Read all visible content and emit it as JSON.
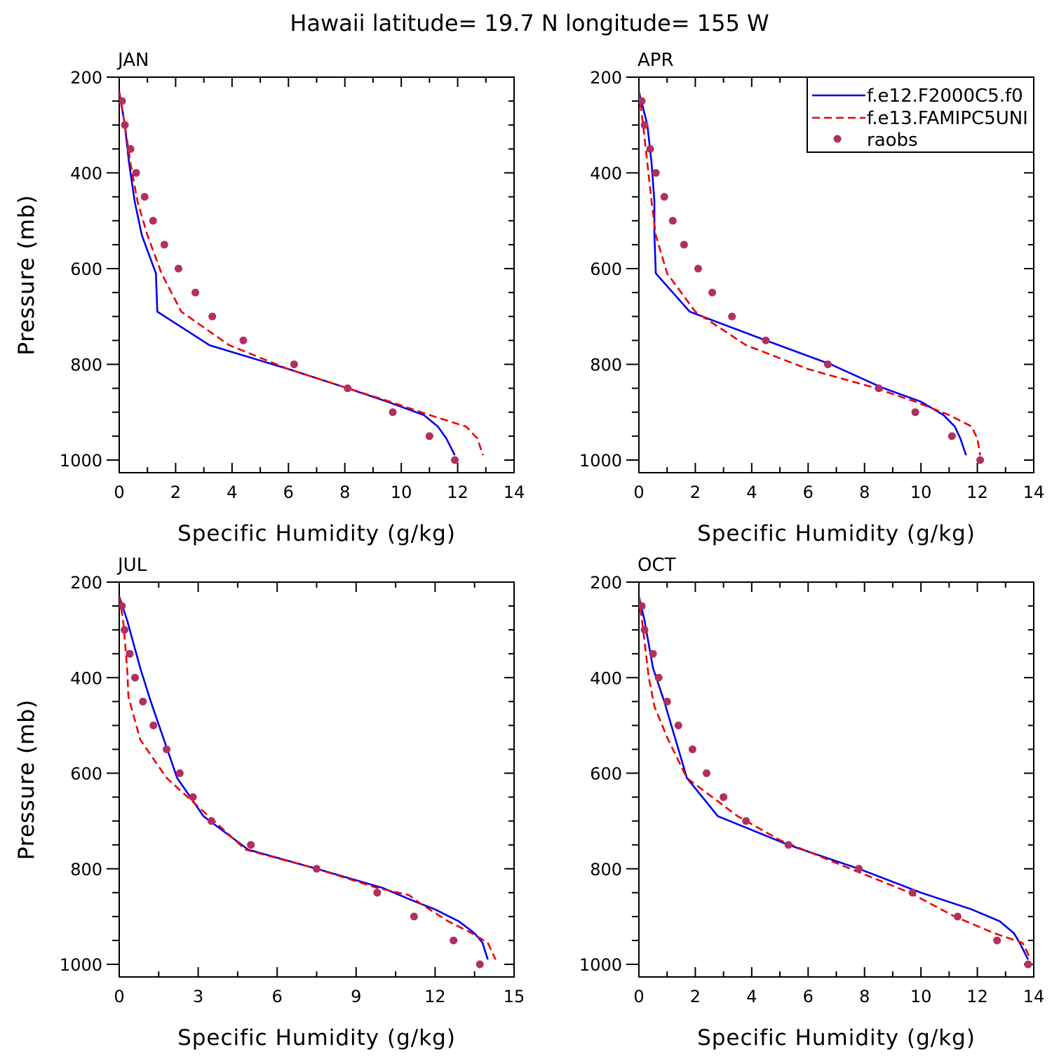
{
  "title": "Hawaii  latitude= 19.7 N longitude= 155 W",
  "colors": {
    "series1": "#0000ee",
    "series2": "#ee0000",
    "obs": "#b03060"
  },
  "legend": {
    "placement": "top-right of APR panel",
    "entries": [
      "f.e12.F2000C5.f0",
      "f.e13.FAMIPC5UNI",
      "raobs"
    ]
  },
  "chart_data": [
    {
      "type": "line",
      "title": "JAN",
      "xlabel": "Specific Humidity (g/kg)",
      "ylabel": "Pressure (mb)",
      "xlim": [
        0,
        14
      ],
      "ylim": [
        1000,
        200
      ],
      "y_inverted": true,
      "xticks": [
        0,
        2,
        4,
        6,
        8,
        10,
        12,
        14
      ],
      "yticks": [
        200,
        400,
        600,
        800,
        1000
      ],
      "series": [
        {
          "style": "solid",
          "points": [
            [
              0.0,
              230
            ],
            [
              0.2,
              300
            ],
            [
              0.35,
              380
            ],
            [
              0.55,
              460
            ],
            [
              0.8,
              530
            ],
            [
              1.3,
              610
            ],
            [
              1.35,
              690
            ],
            [
              3.2,
              760
            ],
            [
              6.0,
              810
            ],
            [
              8.0,
              848
            ],
            [
              9.5,
              878
            ],
            [
              10.8,
              906
            ],
            [
              11.3,
              930
            ],
            [
              11.6,
              955
            ],
            [
              11.9,
              990
            ]
          ]
        },
        {
          "style": "dashed",
          "points": [
            [
              0.0,
              230
            ],
            [
              0.2,
              300
            ],
            [
              0.4,
              380
            ],
            [
              0.65,
              460
            ],
            [
              1.0,
              530
            ],
            [
              1.5,
              610
            ],
            [
              2.2,
              690
            ],
            [
              3.9,
              760
            ],
            [
              6.0,
              810
            ],
            [
              8.0,
              848
            ],
            [
              9.6,
              878
            ],
            [
              11.0,
              906
            ],
            [
              12.3,
              930
            ],
            [
              12.7,
              955
            ],
            [
              12.9,
              990
            ]
          ]
        },
        {
          "style": "markers",
          "points": [
            [
              0.1,
              250
            ],
            [
              0.2,
              300
            ],
            [
              0.4,
              350
            ],
            [
              0.6,
              400
            ],
            [
              0.9,
              450
            ],
            [
              1.2,
              500
            ],
            [
              1.6,
              550
            ],
            [
              2.1,
              600
            ],
            [
              2.7,
              650
            ],
            [
              3.3,
              700
            ],
            [
              4.4,
              750
            ],
            [
              6.2,
              800
            ],
            [
              8.1,
              850
            ],
            [
              9.7,
              900
            ],
            [
              11.0,
              950
            ],
            [
              11.9,
              1000
            ]
          ]
        }
      ]
    },
    {
      "type": "line",
      "title": "APR",
      "xlabel": "Specific Humidity (g/kg)",
      "ylabel": "Pressure (mb)",
      "xlim": [
        0,
        14
      ],
      "ylim": [
        1000,
        200
      ],
      "y_inverted": true,
      "xticks": [
        0,
        2,
        4,
        6,
        8,
        10,
        12,
        14
      ],
      "yticks": [
        200,
        400,
        600,
        800,
        1000
      ],
      "series": [
        {
          "style": "solid",
          "points": [
            [
              0.0,
              230
            ],
            [
              0.3,
              300
            ],
            [
              0.45,
              380
            ],
            [
              0.55,
              460
            ],
            [
              0.55,
              530
            ],
            [
              0.6,
              610
            ],
            [
              1.8,
              690
            ],
            [
              4.5,
              750
            ],
            [
              6.8,
              800
            ],
            [
              8.6,
              848
            ],
            [
              10.0,
              878
            ],
            [
              10.8,
              906
            ],
            [
              11.2,
              930
            ],
            [
              11.4,
              955
            ],
            [
              11.6,
              990
            ]
          ]
        },
        {
          "style": "dashed",
          "points": [
            [
              0.0,
              230
            ],
            [
              0.15,
              300
            ],
            [
              0.3,
              380
            ],
            [
              0.45,
              460
            ],
            [
              0.6,
              530
            ],
            [
              1.0,
              610
            ],
            [
              2.0,
              690
            ],
            [
              3.8,
              760
            ],
            [
              6.0,
              810
            ],
            [
              8.3,
              848
            ],
            [
              9.8,
              878
            ],
            [
              11.0,
              906
            ],
            [
              11.8,
              930
            ],
            [
              12.0,
              955
            ],
            [
              12.1,
              990
            ]
          ]
        },
        {
          "style": "markers",
          "points": [
            [
              0.1,
              250
            ],
            [
              0.2,
              300
            ],
            [
              0.4,
              350
            ],
            [
              0.6,
              400
            ],
            [
              0.9,
              450
            ],
            [
              1.2,
              500
            ],
            [
              1.6,
              550
            ],
            [
              2.1,
              600
            ],
            [
              2.6,
              650
            ],
            [
              3.3,
              700
            ],
            [
              4.5,
              750
            ],
            [
              6.7,
              800
            ],
            [
              8.5,
              850
            ],
            [
              9.8,
              900
            ],
            [
              11.1,
              950
            ],
            [
              12.1,
              1000
            ]
          ]
        }
      ]
    },
    {
      "type": "line",
      "title": "JUL",
      "xlabel": "Specific Humidity (g/kg)",
      "ylabel": "Pressure (mb)",
      "xlim": [
        0,
        15
      ],
      "ylim": [
        1000,
        200
      ],
      "y_inverted": true,
      "xticks": [
        0,
        3,
        6,
        9,
        12,
        15
      ],
      "yticks": [
        200,
        400,
        600,
        800,
        1000
      ],
      "series": [
        {
          "style": "solid",
          "points": [
            [
              0.0,
              230
            ],
            [
              0.3,
              280
            ],
            [
              0.8,
              380
            ],
            [
              1.2,
              450
            ],
            [
              1.7,
              530
            ],
            [
              2.2,
              610
            ],
            [
              3.2,
              690
            ],
            [
              4.9,
              760
            ],
            [
              7.5,
              800
            ],
            [
              10.0,
              840
            ],
            [
              11.3,
              870
            ],
            [
              12.0,
              885
            ],
            [
              12.9,
              910
            ],
            [
              13.5,
              935
            ],
            [
              13.8,
              955
            ],
            [
              14.0,
              990
            ]
          ]
        },
        {
          "style": "dashed",
          "points": [
            [
              0.0,
              230
            ],
            [
              0.15,
              280
            ],
            [
              0.3,
              380
            ],
            [
              0.35,
              440
            ],
            [
              0.8,
              530
            ],
            [
              1.8,
              610
            ],
            [
              3.4,
              690
            ],
            [
              4.8,
              760
            ],
            [
              7.5,
              800
            ],
            [
              9.8,
              840
            ],
            [
              11.0,
              855
            ],
            [
              11.5,
              875
            ],
            [
              12.5,
              910
            ],
            [
              13.4,
              935
            ],
            [
              14.0,
              955
            ],
            [
              14.3,
              990
            ]
          ]
        },
        {
          "style": "markers",
          "points": [
            [
              0.1,
              250
            ],
            [
              0.2,
              300
            ],
            [
              0.4,
              350
            ],
            [
              0.6,
              400
            ],
            [
              0.9,
              450
            ],
            [
              1.3,
              500
            ],
            [
              1.8,
              550
            ],
            [
              2.3,
              600
            ],
            [
              2.8,
              650
            ],
            [
              3.5,
              700
            ],
            [
              5.0,
              750
            ],
            [
              7.5,
              800
            ],
            [
              9.8,
              850
            ],
            [
              11.2,
              900
            ],
            [
              12.7,
              950
            ],
            [
              13.7,
              1000
            ]
          ]
        }
      ]
    },
    {
      "type": "line",
      "title": "OCT",
      "xlabel": "Specific Humidity (g/kg)",
      "ylabel": "Pressure (mb)",
      "xlim": [
        0,
        14
      ],
      "ylim": [
        1000,
        200
      ],
      "y_inverted": true,
      "xticks": [
        0,
        2,
        4,
        6,
        8,
        10,
        12,
        14
      ],
      "yticks": [
        200,
        400,
        600,
        800,
        1000
      ],
      "series": [
        {
          "style": "solid",
          "points": [
            [
              0.0,
              230
            ],
            [
              0.2,
              280
            ],
            [
              0.5,
              380
            ],
            [
              0.9,
              450
            ],
            [
              1.3,
              530
            ],
            [
              1.7,
              610
            ],
            [
              2.8,
              690
            ],
            [
              5.3,
              750
            ],
            [
              7.8,
              800
            ],
            [
              10.0,
              850
            ],
            [
              11.8,
              885
            ],
            [
              12.8,
              910
            ],
            [
              13.3,
              935
            ],
            [
              13.5,
              955
            ],
            [
              13.8,
              990
            ]
          ]
        },
        {
          "style": "dashed",
          "points": [
            [
              0.0,
              230
            ],
            [
              0.15,
              300
            ],
            [
              0.35,
              400
            ],
            [
              0.55,
              460
            ],
            [
              1.0,
              525
            ],
            [
              1.7,
              610
            ],
            [
              3.5,
              690
            ],
            [
              5.0,
              740
            ],
            [
              7.5,
              800
            ],
            [
              9.6,
              850
            ],
            [
              11.2,
              900
            ],
            [
              12.6,
              935
            ],
            [
              13.6,
              955
            ],
            [
              13.9,
              990
            ]
          ]
        },
        {
          "style": "markers",
          "points": [
            [
              0.1,
              250
            ],
            [
              0.2,
              300
            ],
            [
              0.5,
              350
            ],
            [
              0.7,
              400
            ],
            [
              1.0,
              450
            ],
            [
              1.4,
              500
            ],
            [
              1.9,
              550
            ],
            [
              2.4,
              600
            ],
            [
              3.0,
              650
            ],
            [
              3.8,
              700
            ],
            [
              5.3,
              750
            ],
            [
              7.8,
              800
            ],
            [
              9.7,
              850
            ],
            [
              11.3,
              900
            ],
            [
              12.7,
              950
            ],
            [
              13.8,
              1000
            ]
          ]
        }
      ]
    }
  ]
}
